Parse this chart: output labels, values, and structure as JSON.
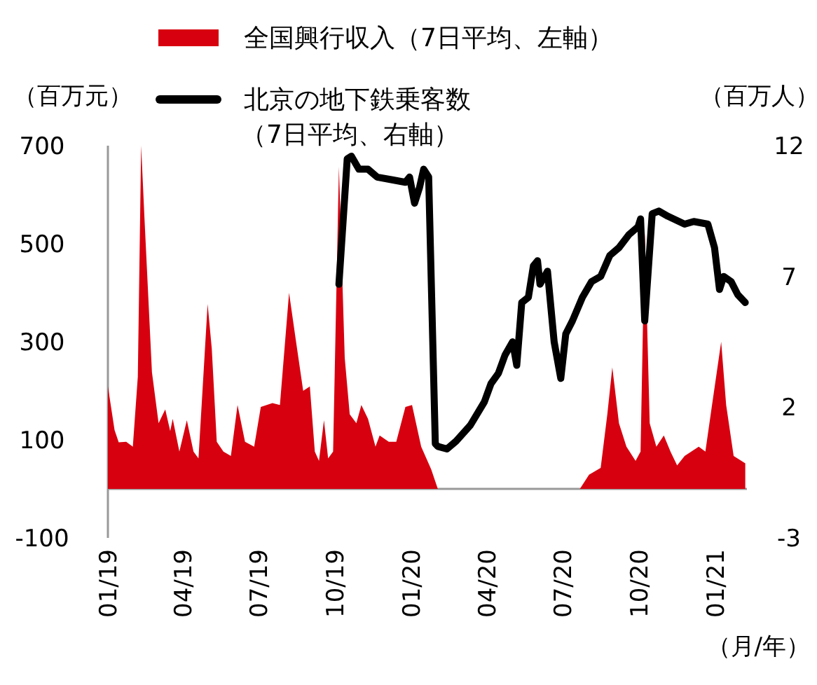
{
  "chart_data": {
    "type": "area",
    "ylabel": "（百万元）",
    "y2label": "（百万人）",
    "xlabel": "（月/年）",
    "legend": "top",
    "grid": false,
    "xlim": [
      "2019-01-01",
      "2021-02-08"
    ],
    "xticks": [
      {
        "value": "2019-01-01",
        "label": "01/19"
      },
      {
        "value": "2019-04-01",
        "label": "04/19"
      },
      {
        "value": "2019-07-01",
        "label": "07/19"
      },
      {
        "value": "2019-10-01",
        "label": "10/19"
      },
      {
        "value": "2020-01-01",
        "label": "01/20"
      },
      {
        "value": "2020-04-01",
        "label": "04/20"
      },
      {
        "value": "2020-07-01",
        "label": "07/20"
      },
      {
        "value": "2020-10-01",
        "label": "10/20"
      },
      {
        "value": "2021-01-01",
        "label": "01/21"
      }
    ],
    "ylim": [
      -100,
      700
    ],
    "yticks": [
      -100,
      100,
      300,
      500,
      700
    ],
    "y2lim": [
      -3,
      12
    ],
    "y2ticks": [
      -3,
      2,
      7,
      12
    ],
    "series": [
      {
        "name": "全国興行収入（7日平均、左軸）",
        "color": "#d7000f",
        "x": [
          "2019-01-01",
          "2019-01-09",
          "2019-01-14",
          "2019-01-23",
          "2019-01-31",
          "2019-02-06",
          "2019-02-10",
          "2019-02-14",
          "2019-02-23",
          "2019-03-03",
          "2019-03-11",
          "2019-03-17",
          "2019-03-20",
          "2019-03-28",
          "2019-04-06",
          "2019-04-14",
          "2019-04-20",
          "2019-05-01",
          "2019-05-06",
          "2019-05-12",
          "2019-05-20",
          "2019-05-29",
          "2019-06-06",
          "2019-06-15",
          "2019-06-26",
          "2019-07-04",
          "2019-07-18",
          "2019-07-27",
          "2019-08-07",
          "2019-08-15",
          "2019-08-24",
          "2019-09-01",
          "2019-09-07",
          "2019-09-12",
          "2019-09-18",
          "2019-09-23",
          "2019-09-29",
          "2019-10-06",
          "2019-10-13",
          "2019-10-19",
          "2019-10-27",
          "2019-11-02",
          "2019-11-10",
          "2019-11-19",
          "2019-11-24",
          "2019-12-05",
          "2019-12-14",
          "2019-12-25",
          "2020-01-02",
          "2020-01-13",
          "2020-01-25",
          "2020-02-02",
          "2020-07-22",
          "2020-08-02",
          "2020-08-16",
          "2020-08-24",
          "2020-08-30",
          "2020-09-07",
          "2020-09-16",
          "2020-09-27",
          "2020-10-03",
          "2020-10-08",
          "2020-10-14",
          "2020-10-22",
          "2020-10-31",
          "2020-11-08",
          "2020-11-16",
          "2020-11-25",
          "2020-12-12",
          "2020-12-20",
          "2020-12-28",
          "2021-01-08",
          "2021-01-14",
          "2021-01-23",
          "2021-02-06"
        ],
        "values": [
          209,
          120,
          95,
          96,
          86,
          229,
          700,
          552,
          238,
          134,
          162,
          118,
          143,
          76,
          140,
          76,
          62,
          377,
          286,
          96,
          76,
          67,
          171,
          96,
          86,
          167,
          175,
          171,
          400,
          305,
          200,
          209,
          76,
          57,
          140,
          62,
          76,
          657,
          267,
          152,
          134,
          171,
          143,
          86,
          109,
          96,
          96,
          167,
          171,
          86,
          40,
          0,
          0,
          29,
          43,
          152,
          248,
          134,
          86,
          57,
          76,
          524,
          134,
          86,
          109,
          76,
          48,
          67,
          86,
          76,
          171,
          300,
          171,
          67,
          52
        ]
      },
      {
        "name": "北京の地下鉄乗客数（7日平均、右軸）",
        "type": "line",
        "axis": "y2",
        "color": "#000000",
        "x": [
          "2019-10-06",
          "2019-10-16",
          "2019-10-21",
          "2019-10-30",
          "2019-11-10",
          "2019-11-21",
          "2019-12-08",
          "2019-12-25",
          "2019-12-30",
          "2020-01-05",
          "2020-01-11",
          "2020-01-16",
          "2020-01-22",
          "2020-01-30",
          "2020-02-02",
          "2020-02-13",
          "2020-02-24",
          "2020-03-12",
          "2020-03-29",
          "2020-04-06",
          "2020-04-15",
          "2020-04-23",
          "2020-05-02",
          "2020-05-07",
          "2020-05-13",
          "2020-05-21",
          "2020-05-27",
          "2020-06-01",
          "2020-06-04",
          "2020-06-13",
          "2020-06-21",
          "2020-06-29",
          "2020-07-05",
          "2020-07-13",
          "2020-07-25",
          "2020-08-05",
          "2020-08-16",
          "2020-08-27",
          "2020-09-07",
          "2020-09-19",
          "2020-09-30",
          "2020-10-03",
          "2020-10-08",
          "2020-10-17",
          "2020-10-25",
          "2020-11-05",
          "2020-11-25",
          "2020-12-06",
          "2020-12-23",
          "2020-12-31",
          "2021-01-06",
          "2021-01-11",
          "2021-01-20",
          "2021-01-28",
          "2021-02-06"
        ],
        "values": [
          6.7,
          11.5,
          11.6,
          11.1,
          11.1,
          10.8,
          10.7,
          10.6,
          10.8,
          9.8,
          10.4,
          11.1,
          10.8,
          0.6,
          0.5,
          0.4,
          0.7,
          1.3,
          2.2,
          2.9,
          3.3,
          4.0,
          4.5,
          3.6,
          6.0,
          6.2,
          7.4,
          7.6,
          6.7,
          7.2,
          4.5,
          3.1,
          4.8,
          5.3,
          6.2,
          6.8,
          7.0,
          7.8,
          8.1,
          8.6,
          8.9,
          9.2,
          5.3,
          9.4,
          9.5,
          9.3,
          9.0,
          9.1,
          9.0,
          8.1,
          6.5,
          7.0,
          6.8,
          6.3,
          6.0
        ]
      }
    ]
  }
}
